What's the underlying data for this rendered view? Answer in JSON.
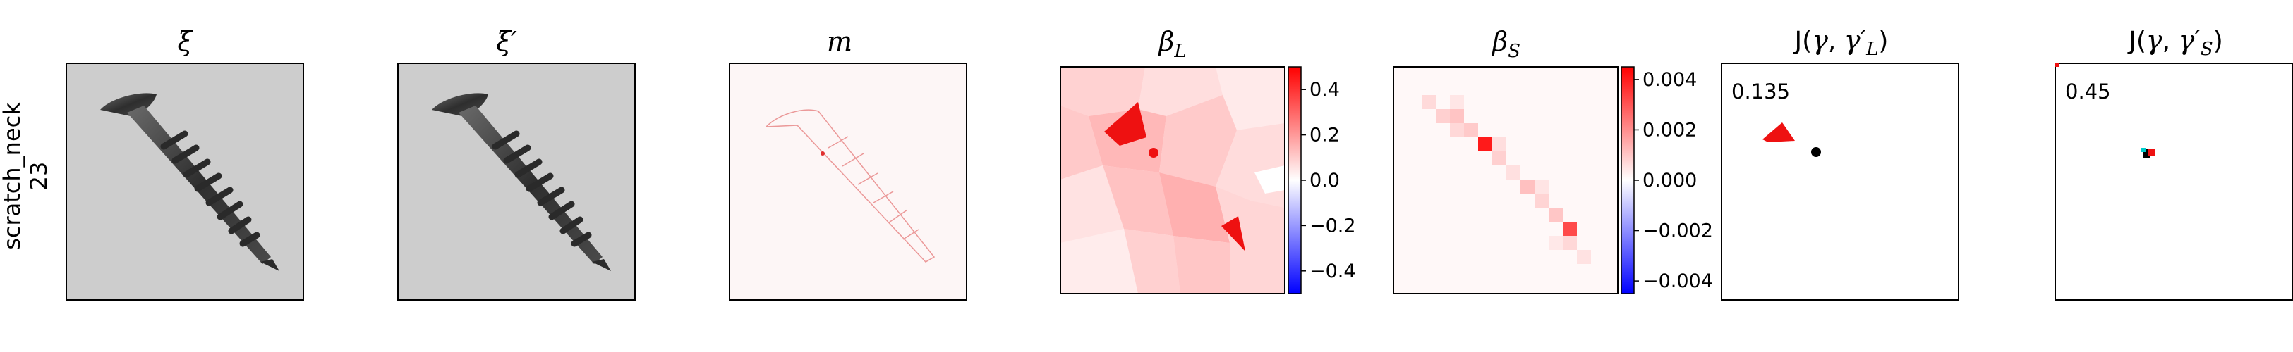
{
  "row_label": {
    "line1": "scratch_neck",
    "line2": "23"
  },
  "panels": [
    {
      "base": "ξ",
      "sub": ""
    },
    {
      "base": "ξ′",
      "sub": ""
    },
    {
      "base": "m",
      "sub": ""
    },
    {
      "base": "β",
      "sub": "L"
    },
    {
      "base": "β",
      "sub": "S"
    },
    {
      "j_prefix": "J(",
      "j_gamma": "γ",
      "j_sep": ", ",
      "j_gamma2": "γ′",
      "j_sub": "L",
      "j_close": ")",
      "value": "0.135"
    },
    {
      "j_prefix": "J(",
      "j_gamma": "γ",
      "j_sep": ", ",
      "j_gamma2": "γ′",
      "j_sub": "S",
      "j_close": ")",
      "value": "0.45"
    }
  ],
  "colorbar_L": {
    "ticks": [
      "0.4",
      "0.2",
      "0.0",
      "−0.2",
      "−0.4"
    ],
    "range": [
      -0.5,
      0.5
    ]
  },
  "colorbar_S": {
    "ticks": [
      "0.004",
      "0.002",
      "0.000",
      "−0.002",
      "−0.004"
    ],
    "range": [
      -0.0045,
      0.0045
    ]
  },
  "colors": {
    "positive": "#ff0000",
    "negative": "#0000ff",
    "image_bg": "#cdcdcd",
    "screw": "#3a3a3a"
  }
}
